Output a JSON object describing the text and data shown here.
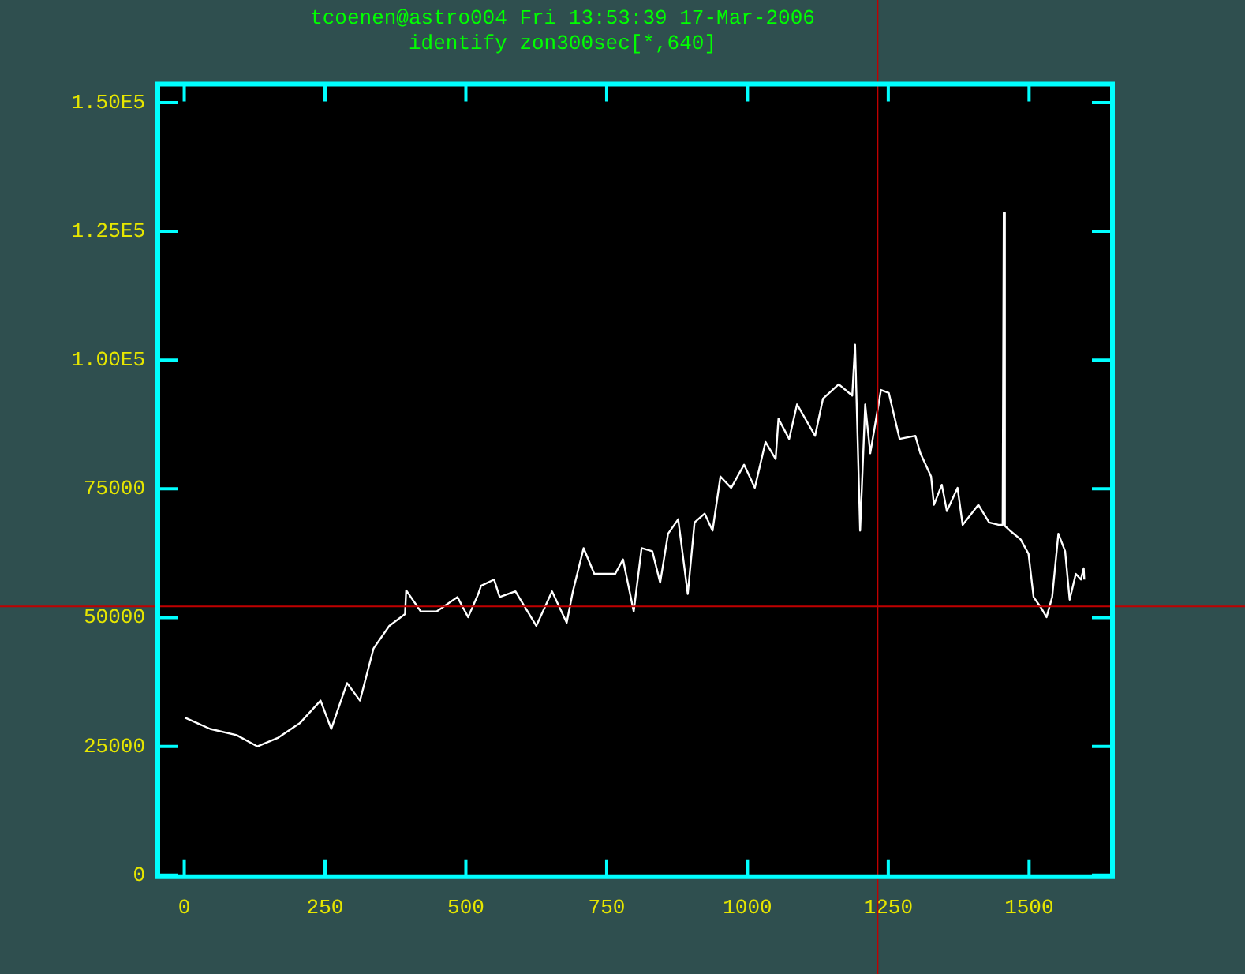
{
  "chart_data": {
    "type": "line",
    "title": "tcoenen@astro004 Fri 13:53:39 17-Mar-2006",
    "subtitle": "identify zon300sec[*,640]",
    "x": [
      1,
      46,
      93,
      130,
      167,
      205,
      242,
      261,
      289,
      312,
      336,
      364,
      392,
      394,
      420,
      448,
      485,
      504,
      522,
      527,
      550,
      560,
      588,
      625,
      653,
      679,
      690,
      709,
      728,
      765,
      779,
      798,
      812,
      831,
      845,
      859,
      877,
      894,
      906,
      924,
      938,
      952,
      971,
      994,
      1013,
      1032,
      1050,
      1055,
      1074,
      1088,
      1120,
      1134,
      1162,
      1186,
      1191,
      1200,
      1209,
      1218,
      1237,
      1251,
      1270,
      1298,
      1307,
      1326,
      1331,
      1345,
      1354,
      1373,
      1382,
      1410,
      1429,
      1447,
      1453,
      1455,
      1457,
      1466,
      1485,
      1499,
      1508,
      1522,
      1531,
      1541,
      1552,
      1564,
      1572,
      1583,
      1592,
      1597,
      1598
    ],
    "series": [
      {
        "color": "#ffffff",
        "values": [
          30600,
          28400,
          27200,
          25000,
          26700,
          29500,
          33900,
          28400,
          37300,
          33900,
          44000,
          48400,
          50700,
          55300,
          51200,
          51200,
          54000,
          50100,
          54600,
          56200,
          57400,
          54000,
          55100,
          48400,
          55100,
          49000,
          55100,
          63500,
          58500,
          58500,
          61300,
          51200,
          63500,
          62900,
          56800,
          66300,
          69100,
          54600,
          68500,
          70200,
          66900,
          77400,
          75200,
          79700,
          75200,
          84100,
          80800,
          88600,
          84700,
          91400,
          85300,
          92500,
          95300,
          93100,
          103000,
          66900,
          91400,
          81900,
          94200,
          93600,
          84700,
          85300,
          81900,
          77400,
          71900,
          75800,
          70700,
          75200,
          68000,
          71900,
          68500,
          68000,
          68000,
          128600,
          67800,
          66900,
          65200,
          62400,
          54000,
          51800,
          50100,
          54000,
          66300,
          62900,
          53500,
          58500,
          57400,
          59600,
          57400
        ]
      }
    ],
    "xlim": [
      -47,
      1648
    ],
    "xticks": [
      0,
      250,
      500,
      750,
      1000,
      1250,
      1500
    ],
    "ylim": [
      -300,
      153600
    ],
    "yticks": [
      0,
      25000,
      50000,
      75000,
      {
        "value": 100000,
        "label": "1.00E5"
      },
      {
        "value": 125000,
        "label": "1.25E5"
      },
      {
        "value": 150000,
        "label": "1.50E5"
      }
    ],
    "ref_lines": [
      {
        "axis": "x",
        "value": 1231,
        "color": "#c00000"
      },
      {
        "axis": "y",
        "value": 52200,
        "color": "#c00000"
      }
    ]
  }
}
